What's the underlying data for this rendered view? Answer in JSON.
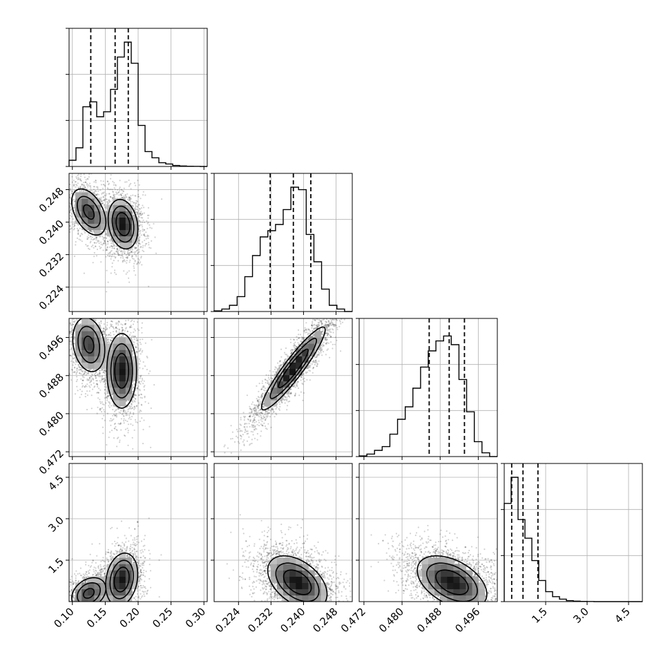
{
  "chart_data": {
    "type": "corner",
    "grid": true,
    "colors": {
      "hist": "#000000",
      "points": "#000000",
      "grid": "#b0b0b0",
      "frame": "#000000"
    },
    "variables": [
      {
        "range": [
          0.095,
          0.305
        ],
        "ticks": [
          "0.10",
          "0.15",
          "0.20",
          "0.25",
          "0.30"
        ],
        "tick_values": [
          0.1,
          0.15,
          0.2,
          0.25,
          0.3
        ],
        "quantiles": [
          0.128,
          0.165,
          0.185
        ]
      },
      {
        "range": [
          0.218,
          0.252
        ],
        "ticks": [
          "0.224",
          "0.232",
          "0.240",
          "0.248"
        ],
        "tick_values": [
          0.224,
          0.232,
          0.24,
          0.248
        ],
        "quantiles": [
          0.2318,
          0.2375,
          0.2418
        ]
      },
      {
        "range": [
          0.471,
          0.5
        ],
        "ticks": [
          "0.472",
          "0.480",
          "0.488",
          "0.496"
        ],
        "tick_values": [
          0.472,
          0.48,
          0.488,
          0.496
        ],
        "quantiles": [
          0.4857,
          0.4899,
          0.4931
        ]
      },
      {
        "range": [
          0.0,
          5.0
        ],
        "ticks": [
          "1.5",
          "3.0",
          "4.5"
        ],
        "tick_values": [
          1.5,
          3.0,
          4.5
        ],
        "quantiles": [
          0.27,
          0.68,
          1.22
        ]
      }
    ],
    "histograms": [
      [
        0.05,
        0.15,
        0.48,
        0.52,
        0.4,
        0.44,
        0.62,
        0.88,
        1.0,
        0.83,
        0.33,
        0.12,
        0.07,
        0.03,
        0.02,
        0.008,
        0.004,
        0.002,
        0.001,
        0.0
      ],
      [
        0.005,
        0.02,
        0.05,
        0.12,
        0.28,
        0.45,
        0.6,
        0.65,
        0.7,
        0.82,
        1.0,
        0.98,
        0.62,
        0.4,
        0.18,
        0.05,
        0.02,
        0.0
      ],
      [
        0.005,
        0.02,
        0.05,
        0.08,
        0.18,
        0.3,
        0.4,
        0.55,
        0.72,
        0.85,
        0.93,
        0.97,
        0.9,
        0.62,
        0.36,
        0.12,
        0.03,
        0.0
      ],
      [
        0.79,
        1.0,
        0.66,
        0.51,
        0.33,
        0.17,
        0.08,
        0.04,
        0.02,
        0.008,
        0.004,
        0.002,
        0.001,
        0.0,
        0.0,
        0.0,
        0.0,
        0.0,
        0.0,
        0.0
      ]
    ],
    "pairs": [
      {
        "x": 0,
        "y": 1,
        "blobs": [
          {
            "mx": 0.125,
            "my": 0.2425,
            "sx": 0.016,
            "sy": 0.0035,
            "rho": -0.45,
            "w": 0.45
          },
          {
            "mx": 0.177,
            "my": 0.2395,
            "sx": 0.013,
            "sy": 0.0035,
            "rho": -0.2,
            "w": 0.55
          }
        ]
      },
      {
        "x": 0,
        "y": 2,
        "blobs": [
          {
            "mx": 0.125,
            "my": 0.4945,
            "sx": 0.015,
            "sy": 0.0035,
            "rho": -0.2,
            "w": 0.45
          },
          {
            "mx": 0.175,
            "my": 0.489,
            "sx": 0.013,
            "sy": 0.0045,
            "rho": 0.0,
            "w": 0.55
          }
        ]
      },
      {
        "x": 0,
        "y": 3,
        "blobs": [
          {
            "mx": 0.125,
            "my": 0.3,
            "sx": 0.016,
            "sy": 0.35,
            "rho": 0.3,
            "w": 0.45
          },
          {
            "mx": 0.175,
            "my": 0.8,
            "sx": 0.014,
            "sy": 0.55,
            "rho": 0.2,
            "w": 0.55
          }
        ]
      },
      {
        "x": 1,
        "y": 2,
        "blobs": [
          {
            "mx": 0.2375,
            "my": 0.4895,
            "sx": 0.0045,
            "sy": 0.005,
            "rho": 0.93,
            "w": 1.0
          }
        ]
      },
      {
        "x": 1,
        "y": 3,
        "blobs": [
          {
            "mx": 0.2385,
            "my": 0.7,
            "sx": 0.0042,
            "sy": 0.55,
            "rho": -0.45,
            "w": 1.0
          }
        ]
      },
      {
        "x": 2,
        "y": 3,
        "blobs": [
          {
            "mx": 0.4905,
            "my": 0.7,
            "sx": 0.0042,
            "sy": 0.55,
            "rho": -0.45,
            "w": 1.0
          }
        ]
      }
    ]
  }
}
